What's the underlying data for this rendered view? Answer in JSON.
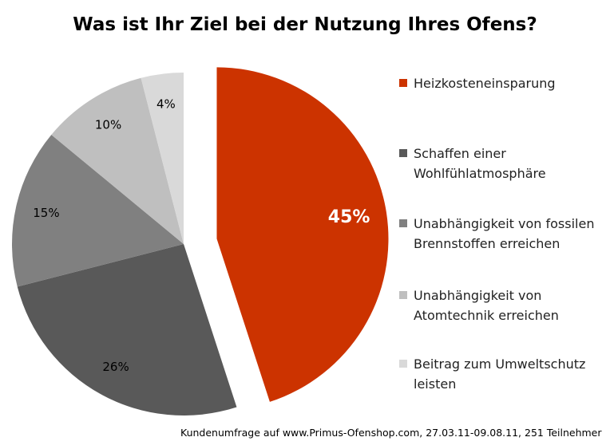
{
  "chart_data": {
    "type": "pie",
    "title": "Was ist Ihr Ziel bei der Nutzung Ihres Ofens?",
    "categories": [
      "Heizkosteneinsparung",
      "Schaffen einer Wohlfühlatmosphäre",
      "Unabhängigkeit von fossilen Brennstoffen erreichen",
      "Unabhängigkeit von Atomtechnik erreichen",
      "Beitrag zum Umweltschutz leisten"
    ],
    "values": [
      45,
      26,
      15,
      10,
      4
    ],
    "value_labels": [
      "45%",
      "26%",
      "15%",
      "10%",
      "4%"
    ],
    "colors": [
      "#cc3300",
      "#595959",
      "#808080",
      "#bfbfbf",
      "#d9d9d9"
    ],
    "exploded_slice": "Heizkosteneinsparung",
    "legend_position": "right"
  },
  "footnote": "Kundenumfrage auf  www.Primus-Ofenshop.com, 27.03.11-09.08.11, 251 Teilnehmer"
}
